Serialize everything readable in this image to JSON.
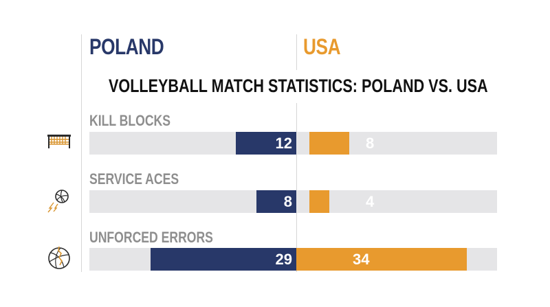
{
  "teams": {
    "left": "POLAND",
    "right": "USA"
  },
  "colors": {
    "poland": "#283869",
    "usa": "#e89a2e",
    "track": "#e5e5e7",
    "label": "#8e8e8e"
  },
  "chart_data": {
    "type": "bar",
    "orientation": "diverging-horizontal",
    "title": "VOLLEYBALL MATCH STATISTICS: POLAND VS. USA",
    "categories": [
      "KILL BLOCKS",
      "SERVICE ACES",
      "UNFORCED ERRORS"
    ],
    "series": [
      {
        "name": "POLAND",
        "values": [
          12,
          8,
          29
        ]
      },
      {
        "name": "USA",
        "values": [
          8,
          4,
          34
        ]
      }
    ],
    "value_labels": {
      "POLAND": [
        "12",
        "8",
        "29"
      ],
      "USA": [
        "8",
        "4",
        "34"
      ]
    },
    "xlim": [
      0,
      40
    ],
    "grid": false,
    "legend": "top (team names as column headers)",
    "icons": [
      "volleyball-net-icon",
      "serving-volleyball-icon",
      "cracked-volleyball-icon"
    ]
  }
}
